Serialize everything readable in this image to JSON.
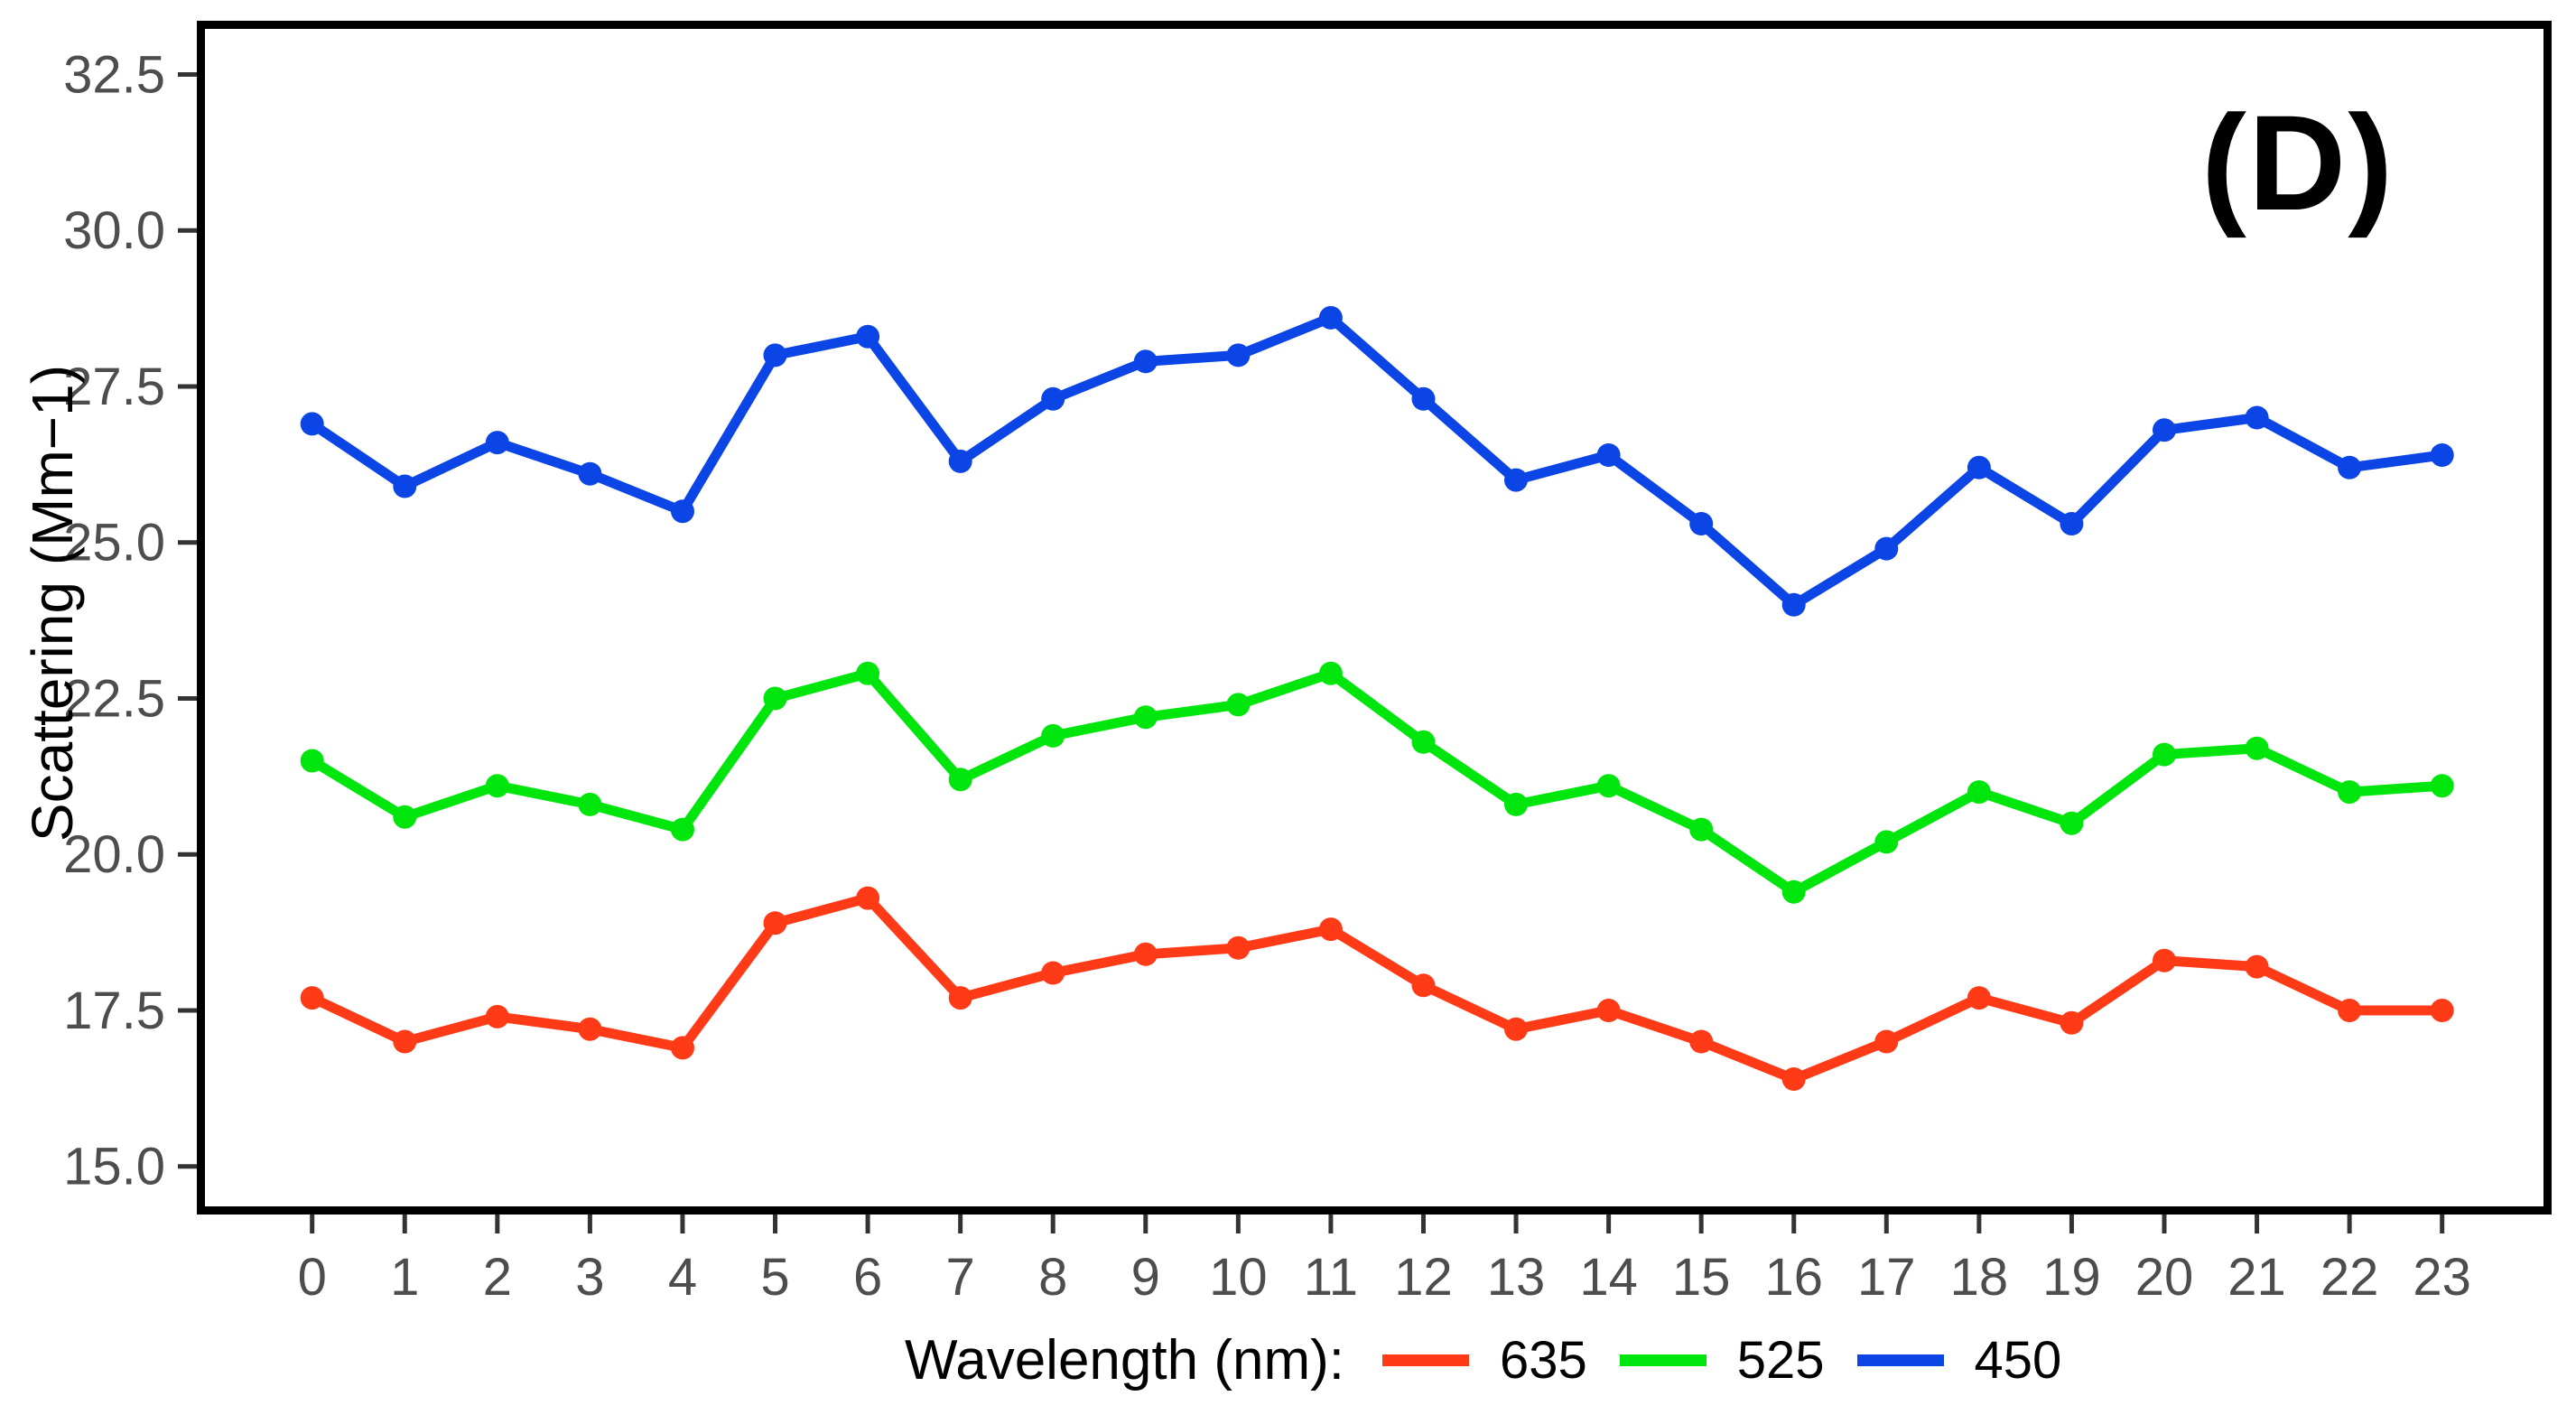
{
  "panel_label": "(D)",
  "y_axis": {
    "title": "Scattering (Mm−1)",
    "tick_labels": [
      "32.5",
      "30.0",
      "27.5",
      "25.0",
      "22.5",
      "20.0",
      "17.5",
      "15.0"
    ],
    "tick_values": [
      32.5,
      30.0,
      27.5,
      25.0,
      22.5,
      20.0,
      17.5,
      15.0
    ]
  },
  "x_axis": {
    "tick_labels": [
      "0",
      "1",
      "2",
      "3",
      "4",
      "5",
      "6",
      "7",
      "8",
      "9",
      "10",
      "11",
      "12",
      "13",
      "14",
      "15",
      "16",
      "17",
      "18",
      "19",
      "20",
      "21",
      "22",
      "23"
    ],
    "tick_values": [
      0,
      1,
      2,
      3,
      4,
      5,
      6,
      7,
      8,
      9,
      10,
      11,
      12,
      13,
      14,
      15,
      16,
      17,
      18,
      19,
      20,
      21,
      22,
      23
    ]
  },
  "legend": {
    "title": "Wavelength (nm):",
    "items": [
      {
        "label": "635",
        "color": "#FF3A17"
      },
      {
        "label": "525",
        "color": "#00E60C"
      },
      {
        "label": "450",
        "color": "#0C45E6"
      }
    ]
  },
  "colors": {
    "axis_text": "#4d4d4d",
    "tick_mark": "#333333",
    "panel_border": "#000000",
    "background": "#ffffff"
  },
  "chart_data": {
    "type": "line",
    "title": "",
    "xlabel": "",
    "ylabel": "Scattering (Mm−1)",
    "x": [
      0,
      1,
      2,
      3,
      4,
      5,
      6,
      7,
      8,
      9,
      10,
      11,
      12,
      13,
      14,
      15,
      16,
      17,
      18,
      19,
      20,
      21,
      22,
      23
    ],
    "ylim": [
      14.2,
      33.4
    ],
    "grid": false,
    "legend_position": "bottom",
    "marker": "circle",
    "series": [
      {
        "name": "635",
        "color": "#FF3A17",
        "values": [
          17.7,
          17.0,
          17.4,
          17.2,
          16.9,
          18.9,
          19.3,
          17.7,
          18.1,
          18.4,
          18.5,
          18.8,
          17.9,
          17.2,
          17.5,
          17.0,
          16.4,
          17.0,
          17.7,
          17.3,
          18.3,
          18.2,
          17.5,
          17.5
        ]
      },
      {
        "name": "525",
        "color": "#00E60C",
        "values": [
          21.5,
          20.6,
          21.1,
          20.8,
          20.4,
          22.5,
          22.9,
          21.2,
          21.9,
          22.2,
          22.4,
          22.9,
          21.8,
          20.8,
          21.1,
          20.4,
          19.4,
          20.2,
          21.0,
          20.5,
          21.6,
          21.7,
          21.0,
          21.1
        ]
      },
      {
        "name": "450",
        "color": "#0C45E6",
        "values": [
          26.9,
          25.9,
          26.6,
          26.1,
          25.5,
          28.0,
          28.3,
          26.3,
          27.3,
          27.9,
          28.0,
          28.6,
          27.3,
          26.0,
          26.4,
          25.3,
          24.0,
          24.9,
          26.2,
          25.3,
          26.8,
          27.0,
          26.2,
          26.4
        ]
      }
    ]
  }
}
